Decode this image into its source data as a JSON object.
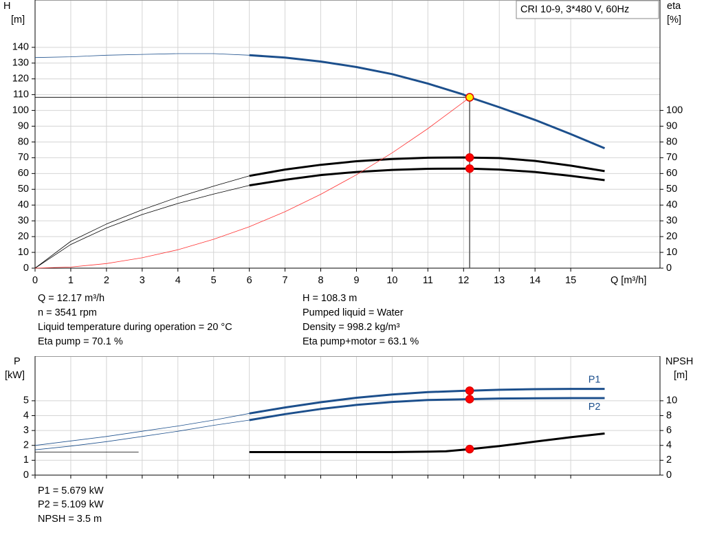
{
  "chart_data": [
    {
      "type": "line",
      "title": "CRI 10-9, 3*480 V, 60Hz",
      "x_label": "Q [m³/h]",
      "y_label": [
        "H",
        "[m]"
      ],
      "y2_label": [
        "eta",
        "[%]"
      ],
      "xlim": [
        0,
        17.5
      ],
      "xticks": [
        0,
        1,
        2,
        3,
        4,
        5,
        6,
        7,
        8,
        9,
        10,
        11,
        12,
        13,
        14,
        15
      ],
      "ylim": [
        0,
        170
      ],
      "yticks": [
        0,
        10,
        20,
        30,
        40,
        50,
        60,
        70,
        80,
        90,
        100,
        110,
        120,
        130,
        140
      ],
      "y2lim": [
        0,
        170
      ],
      "y2ticks": [
        0,
        10,
        20,
        30,
        40,
        50,
        60,
        70,
        80,
        90,
        100
      ],
      "grid": true,
      "show_xtick_labels": true,
      "crosshair": true,
      "series": [
        {
          "color": "#1c4f8c",
          "thick_from": 6,
          "x": [
            0,
            1,
            2,
            3,
            4,
            5,
            6,
            7,
            8,
            9,
            10,
            11,
            12,
            12.17,
            13,
            14,
            15,
            15.95
          ],
          "values": [
            133.5,
            134,
            135,
            135.5,
            136,
            136,
            135,
            133.5,
            131,
            127.5,
            123,
            117,
            110,
            108.3,
            102,
            94,
            85,
            76
          ]
        },
        {
          "color": "#000000",
          "thick_from": 6,
          "axis": "y2",
          "x": [
            0,
            1,
            2,
            3,
            4,
            5,
            6,
            7,
            8,
            9,
            10,
            11,
            12,
            12.17,
            13,
            14,
            15,
            15.95
          ],
          "values": [
            0,
            17,
            28,
            37,
            45,
            52,
            58.5,
            62.5,
            65.5,
            67.8,
            69.2,
            70,
            70.2,
            70.1,
            69.8,
            68,
            65,
            61.5
          ]
        },
        {
          "color": "#000000",
          "thick_from": 6,
          "axis": "y2",
          "x": [
            0,
            1,
            2,
            3,
            4,
            5,
            6,
            7,
            8,
            9,
            10,
            11,
            12,
            12.17,
            13,
            14,
            15,
            15.95
          ],
          "values": [
            0,
            15,
            25.5,
            34,
            41,
            47,
            52.5,
            56,
            59,
            61,
            62.3,
            63,
            63.1,
            63.1,
            62.5,
            61,
            58.5,
            55.8
          ]
        },
        {
          "color": "#ff3030",
          "x": [
            0,
            1,
            2,
            3,
            4,
            5,
            6,
            7,
            8,
            9,
            10,
            11,
            12,
            12.17
          ],
          "values": [
            0,
            0.7,
            2.9,
            6.6,
            11.7,
            18.3,
            26.3,
            35.8,
            46.8,
            59.2,
            73.1,
            88.5,
            105.3,
            108.3
          ]
        }
      ],
      "markers": [
        {
          "x": 12.17,
          "y": 108.3,
          "color": "#ffee00"
        },
        {
          "x": 12.17,
          "y": 70.1,
          "axis": "y2",
          "color": "#ff0000"
        },
        {
          "x": 12.17,
          "y": 63.1,
          "axis": "y2",
          "color": "#ff0000"
        }
      ]
    },
    {
      "type": "line",
      "y_label": [
        "P",
        "[kW]"
      ],
      "y2_label": [
        "NPSH",
        "[m]"
      ],
      "xlim": [
        0,
        17.5
      ],
      "xticks": [
        0,
        1,
        2,
        3,
        4,
        5,
        6,
        7,
        8,
        9,
        10,
        11,
        12,
        13,
        14,
        15
      ],
      "ylim": [
        0,
        8
      ],
      "yticks": [
        0,
        1,
        2,
        3,
        4,
        5
      ],
      "y2lim": [
        0,
        16
      ],
      "y2ticks": [
        0,
        2,
        4,
        6,
        8,
        10
      ],
      "grid": true,
      "show_xtick_labels": false,
      "crosshair": false,
      "series": [
        {
          "name": "P1",
          "color": "#1c4f8c",
          "thick_from": 6,
          "label_side": "above",
          "x": [
            0,
            1,
            2,
            3,
            4,
            5,
            6,
            7,
            8,
            9,
            10,
            11,
            12,
            12.17,
            13,
            14,
            15,
            15.95
          ],
          "values": [
            2.0,
            2.3,
            2.6,
            2.95,
            3.3,
            3.7,
            4.15,
            4.55,
            4.9,
            5.2,
            5.42,
            5.58,
            5.67,
            5.679,
            5.74,
            5.78,
            5.8,
            5.8
          ]
        },
        {
          "name": "P2",
          "color": "#1c4f8c",
          "thick_from": 6,
          "label_side": "below",
          "x": [
            0,
            1,
            2,
            3,
            4,
            5,
            6,
            7,
            8,
            9,
            10,
            11,
            12,
            12.17,
            13,
            14,
            15,
            15.95
          ],
          "values": [
            1.7,
            1.95,
            2.25,
            2.6,
            2.95,
            3.35,
            3.7,
            4.1,
            4.45,
            4.72,
            4.92,
            5.05,
            5.1,
            5.109,
            5.15,
            5.17,
            5.18,
            5.18
          ]
        },
        {
          "color": "#000000",
          "thick_from": 6,
          "axis": "y2",
          "x": [
            0,
            2.9,
            4.5,
            6,
            7,
            8,
            9,
            10,
            11,
            11.5,
            12.17,
            13,
            14,
            15,
            15.95
          ],
          "values": [
            3.1,
            3.1,
            null,
            3.1,
            3.1,
            3.1,
            3.1,
            3.1,
            3.15,
            3.2,
            3.5,
            3.9,
            4.5,
            5.1,
            5.6
          ]
        }
      ],
      "markers": [
        {
          "x": 12.17,
          "y": 5.679,
          "color": "#ff0000"
        },
        {
          "x": 12.17,
          "y": 5.109,
          "color": "#ff0000"
        },
        {
          "x": 12.17,
          "y": 3.5,
          "axis": "y2",
          "color": "#ff0000"
        }
      ]
    }
  ],
  "operating_info": {
    "left": [
      "Q = 12.17 m³/h",
      "n = 3541 rpm",
      "Liquid temperature during operation = 20 °C",
      "Eta pump = 70.1 %"
    ],
    "right": [
      "H = 108.3 m",
      "Pumped liquid = Water",
      "Density = 998.2 kg/m³",
      "Eta pump+motor = 63.1 %"
    ]
  },
  "power_info": [
    "P1 = 5.679 kW",
    "P2 = 5.109 kW",
    "NPSH = 3.5 m"
  ]
}
